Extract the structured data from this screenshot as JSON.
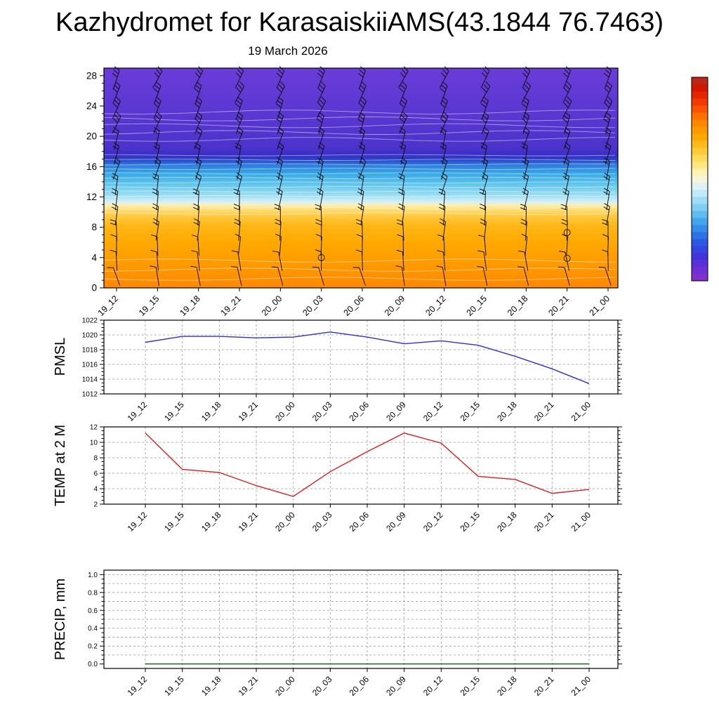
{
  "header": {
    "title": "Kazhydromet for KarasaiskiiAMS(43.1844 76.7463)"
  },
  "times": [
    "19_12",
    "19_15",
    "19_18",
    "19_21",
    "20_00",
    "20_03",
    "20_06",
    "20_09",
    "20_12",
    "20_15",
    "20_18",
    "20_21",
    "21_00"
  ],
  "style": {
    "grid_color": "#999999",
    "axis_color": "#000000",
    "background": "#FFFFFF"
  },
  "chart_data": [
    {
      "id": "upper_air",
      "type": "heatmap",
      "title": "19 March 2026",
      "ylim": [
        0,
        29
      ],
      "yticks": [
        0,
        4,
        8,
        12,
        16,
        20,
        24,
        28
      ],
      "ytick_labels": [
        "0",
        "4",
        "8",
        "12",
        "16",
        "20",
        "24",
        "28"
      ],
      "legend_position": "right-colorbar",
      "fill_gradient_bottom_to_top": [
        [
          0.0,
          "#FF8800"
        ],
        [
          0.1,
          "#FF9900"
        ],
        [
          0.2,
          "#FFA800"
        ],
        [
          0.28,
          "#FFB614"
        ],
        [
          0.33,
          "#FFCB44"
        ],
        [
          0.36,
          "#FFE080"
        ],
        [
          0.375,
          "#FFEFAC"
        ],
        [
          0.39,
          "#D9F0F7"
        ],
        [
          0.42,
          "#9EDFF3"
        ],
        [
          0.47,
          "#63C6EC"
        ],
        [
          0.52,
          "#38A9E6"
        ],
        [
          0.56,
          "#2C7ADC"
        ],
        [
          0.585,
          "#2B40C8"
        ],
        [
          0.605,
          "#3A2EC6"
        ],
        [
          0.64,
          "#4C33CC"
        ],
        [
          0.75,
          "#5736D0"
        ],
        [
          1.0,
          "#6A3CD8"
        ]
      ],
      "contour_color": "#FFFFFF",
      "contours": [
        [
          1.2,
          2.2
        ],
        [
          2.4,
          2.2
        ],
        [
          3.6,
          2.2
        ],
        [
          9.8,
          1.4
        ],
        [
          10.5,
          1.4
        ],
        [
          12.1,
          0.9
        ],
        [
          12.7,
          0.9
        ],
        [
          13.3,
          0.9
        ],
        [
          13.9,
          0.9
        ],
        [
          14.5,
          0.9
        ],
        [
          15.1,
          0.9
        ],
        [
          15.7,
          0.9
        ],
        [
          16.3,
          0.9
        ],
        [
          16.9,
          0.9
        ],
        [
          17.5,
          0.9
        ],
        [
          19.6,
          2.8
        ],
        [
          20.5,
          2.8
        ],
        [
          21.4,
          2.8
        ],
        [
          22.3,
          2.8
        ],
        [
          23.2,
          2.8
        ]
      ],
      "wind_barbs": {
        "color": "#111111",
        "rows": [
          {
            "h": 27.5,
            "angle": 24,
            "ticks": 3
          },
          {
            "h": 25.5,
            "angle": 24,
            "ticks": 3
          },
          {
            "h": 23.5,
            "angle": 22,
            "ticks": 3
          },
          {
            "h": 21.5,
            "angle": 20,
            "ticks": 3
          },
          {
            "h": 19.5,
            "angle": 17,
            "ticks": 2
          },
          {
            "h": 17.5,
            "angle": 14,
            "ticks": 2
          },
          {
            "h": 15.5,
            "angle": 16,
            "ticks": 2
          },
          {
            "h": 13.5,
            "angle": 12,
            "ticks": 2
          },
          {
            "h": 11.5,
            "angle": 7,
            "ticks": 2
          },
          {
            "h": 9.5,
            "angle": 4,
            "ticks": 2
          },
          {
            "h": 7.5,
            "angle": 3,
            "ticks": 2
          },
          {
            "h": 5.5,
            "angle": 1,
            "ticks": 1
          },
          {
            "h": 3.5,
            "angle": -6,
            "ticks": 1
          },
          {
            "h": 1.5,
            "angle": -14,
            "ticks": 1
          }
        ]
      },
      "markers": [
        {
          "x_index": 5,
          "h": 4.0
        },
        {
          "x_index": 11,
          "h": 7.3
        },
        {
          "x_index": 11,
          "h": 3.9
        }
      ],
      "colorbar": {
        "segments": 29,
        "stops_bottom_to_top": [
          [
            0.0,
            "#8A30C8"
          ],
          [
            0.06,
            "#6A2FD6"
          ],
          [
            0.12,
            "#4433DC"
          ],
          [
            0.18,
            "#2A52E2"
          ],
          [
            0.24,
            "#2E7FE8"
          ],
          [
            0.3,
            "#46ABEE"
          ],
          [
            0.36,
            "#7CCDF4"
          ],
          [
            0.42,
            "#B5E6F8"
          ],
          [
            0.46,
            "#DDF2FA"
          ],
          [
            0.52,
            "#FFF6C8"
          ],
          [
            0.57,
            "#FFE880"
          ],
          [
            0.63,
            "#FFCE3E"
          ],
          [
            0.7,
            "#FFAC00"
          ],
          [
            0.77,
            "#FF8C00"
          ],
          [
            0.83,
            "#FF6000"
          ],
          [
            0.89,
            "#F03000"
          ],
          [
            0.95,
            "#D01800"
          ],
          [
            1.0,
            "#B03028"
          ]
        ]
      }
    },
    {
      "id": "pmsl",
      "type": "line",
      "ylabel": "PMSL",
      "line_color": "#3030C8",
      "ylim": [
        1012,
        1022
      ],
      "yticks": [
        1012,
        1014,
        1016,
        1018,
        1020,
        1022
      ],
      "ytick_labels": [
        "1012",
        "1014",
        "1016",
        "1018",
        "1020",
        "1022"
      ],
      "grid_values": [
        1014,
        1016,
        1018,
        1020
      ],
      "minor_step": 0.5,
      "grid": true,
      "values": [
        1019.0,
        1019.8,
        1019.8,
        1019.6,
        1019.7,
        1020.4,
        1019.7,
        1018.8,
        1019.2,
        1018.6,
        1017.1,
        1015.4,
        1013.4
      ]
    },
    {
      "id": "temp2m",
      "type": "line",
      "ylabel": "TEMP at 2 M",
      "line_color": "#D42020",
      "ylim": [
        2,
        12
      ],
      "yticks": [
        2,
        4,
        6,
        8,
        10,
        12
      ],
      "ytick_labels": [
        "2",
        "4",
        "6",
        "8",
        "10",
        "12"
      ],
      "grid_values": [
        4,
        6,
        8,
        10
      ],
      "minor_step": 0.5,
      "grid": true,
      "values": [
        11.2,
        6.5,
        6.1,
        4.4,
        3.0,
        6.2,
        8.8,
        11.2,
        9.9,
        5.6,
        5.2,
        3.4,
        3.9
      ]
    },
    {
      "id": "precip",
      "type": "line",
      "ylabel": "PRECIP, mm",
      "line_color": "#006400",
      "ylim": [
        -0.05,
        1.05
      ],
      "yticks": [
        0,
        0.2,
        0.4,
        0.6,
        0.8,
        1.0
      ],
      "ytick_labels": [
        "0.0",
        "0.2",
        "0.4",
        "0.6",
        "0.8",
        "1.0"
      ],
      "grid_values": [
        0.1,
        0.2,
        0.3,
        0.4,
        0.5,
        0.6,
        0.7,
        0.8,
        0.9,
        1.0
      ],
      "minor_step": 0.05,
      "grid": true,
      "values": [
        0,
        0,
        0,
        0,
        0,
        0,
        0,
        0,
        0,
        0,
        0,
        0,
        0
      ]
    }
  ]
}
